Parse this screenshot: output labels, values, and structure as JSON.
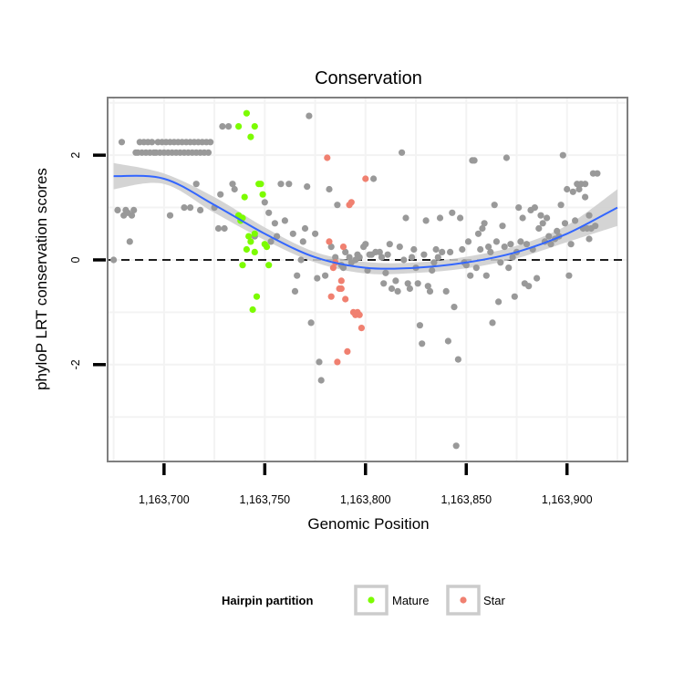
{
  "chart_data": {
    "type": "scatter",
    "title": "Conservation",
    "xlabel": "Genomic Position",
    "ylabel": "phyloP LRT conservation scores",
    "xlim": [
      1163672,
      1163930
    ],
    "ylim": [
      -3.85,
      3.1
    ],
    "x_ticks": [
      {
        "value": 1163700,
        "label": "1,163,700"
      },
      {
        "value": 1163750,
        "label": "1,163,750"
      },
      {
        "value": 1163800,
        "label": "1,163,800"
      },
      {
        "value": 1163850,
        "label": "1,163,850"
      },
      {
        "value": 1163900,
        "label": "1,163,900"
      }
    ],
    "y_ticks": [
      {
        "value": -2,
        "label": "-2"
      },
      {
        "value": 0,
        "label": "0"
      },
      {
        "value": 2,
        "label": "2"
      }
    ],
    "hline": 0,
    "grid": true,
    "colors": {
      "Other": "#999999",
      "Mature": "#7cfc00",
      "Star": "#f08070",
      "smooth": "#3366ff",
      "band": "#cccccc",
      "panel_bg": "#ffffff",
      "grid": "#f3f3f3",
      "border": "#7f7f7f"
    },
    "legend": {
      "title": "Hairpin partition",
      "position": "bottom",
      "entries": [
        {
          "name": "Mature",
          "color": "#7cfc00"
        },
        {
          "name": "Star",
          "color": "#f08070"
        }
      ]
    },
    "series": [
      {
        "name": "Other",
        "color": "#999999",
        "in_legend": false,
        "points": [
          [
            1163675,
            0.0
          ],
          [
            1163677,
            0.95
          ],
          [
            1163679,
            2.25
          ],
          [
            1163680,
            0.85
          ],
          [
            1163681,
            0.95
          ],
          [
            1163682,
            0.9
          ],
          [
            1163683,
            0.35
          ],
          [
            1163684,
            0.85
          ],
          [
            1163685,
            0.95
          ],
          [
            1163686,
            2.05
          ],
          [
            1163687,
            2.05
          ],
          [
            1163688,
            2.25
          ],
          [
            1163689,
            2.05
          ],
          [
            1163690,
            2.25
          ],
          [
            1163691,
            2.05
          ],
          [
            1163692,
            2.25
          ],
          [
            1163693,
            2.05
          ],
          [
            1163694,
            2.25
          ],
          [
            1163695,
            2.05
          ],
          [
            1163696,
            2.05
          ],
          [
            1163697,
            2.25
          ],
          [
            1163698,
            2.05
          ],
          [
            1163699,
            2.25
          ],
          [
            1163700,
            2.05
          ],
          [
            1163701,
            2.25
          ],
          [
            1163702,
            2.05
          ],
          [
            1163703,
            2.25
          ],
          [
            1163704,
            2.05
          ],
          [
            1163705,
            2.25
          ],
          [
            1163706,
            2.05
          ],
          [
            1163707,
            2.25
          ],
          [
            1163708,
            2.05
          ],
          [
            1163709,
            2.25
          ],
          [
            1163710,
            2.05
          ],
          [
            1163711,
            2.25
          ],
          [
            1163712,
            2.05
          ],
          [
            1163713,
            2.25
          ],
          [
            1163714,
            2.05
          ],
          [
            1163715,
            2.25
          ],
          [
            1163716,
            2.05
          ],
          [
            1163717,
            2.25
          ],
          [
            1163718,
            2.05
          ],
          [
            1163719,
            2.25
          ],
          [
            1163720,
            2.05
          ],
          [
            1163721,
            2.25
          ],
          [
            1163722,
            2.05
          ],
          [
            1163723,
            2.25
          ],
          [
            1163703,
            0.85
          ],
          [
            1163710,
            1.0
          ],
          [
            1163713,
            1.0
          ],
          [
            1163716,
            1.45
          ],
          [
            1163718,
            0.95
          ],
          [
            1163725,
            1.0
          ],
          [
            1163727,
            0.6
          ],
          [
            1163728,
            1.25
          ],
          [
            1163729,
            2.55
          ],
          [
            1163730,
            0.6
          ],
          [
            1163732,
            2.55
          ],
          [
            1163734,
            1.45
          ],
          [
            1163735,
            1.35
          ],
          [
            1163745,
            0.45
          ],
          [
            1163750,
            1.1
          ],
          [
            1163752,
            0.9
          ],
          [
            1163753,
            0.35
          ],
          [
            1163755,
            0.7
          ],
          [
            1163756,
            0.45
          ],
          [
            1163758,
            1.45
          ],
          [
            1163760,
            0.75
          ],
          [
            1163762,
            1.45
          ],
          [
            1163764,
            0.5
          ],
          [
            1163765,
            -0.6
          ],
          [
            1163766,
            -0.3
          ],
          [
            1163768,
            0.0
          ],
          [
            1163769,
            0.35
          ],
          [
            1163770,
            0.6
          ],
          [
            1163771,
            1.4
          ],
          [
            1163772,
            2.75
          ],
          [
            1163773,
            -1.2
          ],
          [
            1163775,
            0.5
          ],
          [
            1163776,
            -0.35
          ],
          [
            1163777,
            -1.95
          ],
          [
            1163778,
            -2.3
          ],
          [
            1163780,
            -0.3
          ],
          [
            1163782,
            1.35
          ],
          [
            1163783,
            0.25
          ],
          [
            1163785,
            0.05
          ],
          [
            1163786,
            1.05
          ],
          [
            1163788,
            -0.1
          ],
          [
            1163789,
            -0.15
          ],
          [
            1163790,
            0.15
          ],
          [
            1163792,
            0.05
          ],
          [
            1163793,
            -0.05
          ],
          [
            1163795,
            0.0
          ],
          [
            1163796,
            0.1
          ],
          [
            1163797,
            0.05
          ],
          [
            1163799,
            0.25
          ],
          [
            1163800,
            0.3
          ],
          [
            1163801,
            -0.2
          ],
          [
            1163802,
            0.1
          ],
          [
            1163803,
            0.1
          ],
          [
            1163804,
            1.55
          ],
          [
            1163805,
            0.15
          ],
          [
            1163807,
            0.15
          ],
          [
            1163808,
            0.05
          ],
          [
            1163809,
            -0.45
          ],
          [
            1163810,
            -0.25
          ],
          [
            1163811,
            0.1
          ],
          [
            1163812,
            0.3
          ],
          [
            1163813,
            -0.55
          ],
          [
            1163815,
            -0.4
          ],
          [
            1163816,
            -0.6
          ],
          [
            1163817,
            0.25
          ],
          [
            1163818,
            2.05
          ],
          [
            1163819,
            0.0
          ],
          [
            1163820,
            0.8
          ],
          [
            1163821,
            -0.45
          ],
          [
            1163822,
            -0.55
          ],
          [
            1163823,
            0.05
          ],
          [
            1163824,
            0.2
          ],
          [
            1163825,
            -0.15
          ],
          [
            1163826,
            -0.45
          ],
          [
            1163827,
            -1.25
          ],
          [
            1163828,
            -1.6
          ],
          [
            1163829,
            0.1
          ],
          [
            1163830,
            0.75
          ],
          [
            1163831,
            -0.5
          ],
          [
            1163832,
            -0.6
          ],
          [
            1163833,
            -0.2
          ],
          [
            1163834,
            -0.05
          ],
          [
            1163835,
            0.2
          ],
          [
            1163836,
            0.05
          ],
          [
            1163837,
            0.8
          ],
          [
            1163838,
            0.15
          ],
          [
            1163840,
            -0.6
          ],
          [
            1163841,
            -1.55
          ],
          [
            1163842,
            0.15
          ],
          [
            1163843,
            0.9
          ],
          [
            1163844,
            -0.9
          ],
          [
            1163845,
            -3.55
          ],
          [
            1163846,
            -1.9
          ],
          [
            1163847,
            0.8
          ],
          [
            1163848,
            0.2
          ],
          [
            1163849,
            -0.05
          ],
          [
            1163850,
            -0.1
          ],
          [
            1163851,
            0.35
          ],
          [
            1163852,
            -0.3
          ],
          [
            1163853,
            1.9
          ],
          [
            1163854,
            1.9
          ],
          [
            1163855,
            -0.15
          ],
          [
            1163856,
            0.5
          ],
          [
            1163857,
            0.2
          ],
          [
            1163858,
            0.6
          ],
          [
            1163859,
            0.7
          ],
          [
            1163860,
            -0.3
          ],
          [
            1163861,
            0.25
          ],
          [
            1163862,
            0.15
          ],
          [
            1163863,
            -1.2
          ],
          [
            1163864,
            1.05
          ],
          [
            1163865,
            0.35
          ],
          [
            1163866,
            -0.8
          ],
          [
            1163867,
            -0.05
          ],
          [
            1163868,
            0.65
          ],
          [
            1163869,
            0.25
          ],
          [
            1163870,
            1.95
          ],
          [
            1163871,
            -0.15
          ],
          [
            1163872,
            0.3
          ],
          [
            1163873,
            0.05
          ],
          [
            1163874,
            -0.7
          ],
          [
            1163875,
            0.15
          ],
          [
            1163876,
            1.0
          ],
          [
            1163877,
            0.35
          ],
          [
            1163878,
            0.8
          ],
          [
            1163879,
            -0.45
          ],
          [
            1163880,
            0.3
          ],
          [
            1163881,
            -0.5
          ],
          [
            1163882,
            0.95
          ],
          [
            1163883,
            0.2
          ],
          [
            1163884,
            1.0
          ],
          [
            1163885,
            -0.35
          ],
          [
            1163886,
            0.6
          ],
          [
            1163887,
            0.85
          ],
          [
            1163888,
            0.7
          ],
          [
            1163889,
            0.35
          ],
          [
            1163890,
            0.8
          ],
          [
            1163891,
            0.45
          ],
          [
            1163892,
            0.3
          ],
          [
            1163894,
            0.4
          ],
          [
            1163895,
            0.55
          ],
          [
            1163896,
            0.45
          ],
          [
            1163897,
            1.05
          ],
          [
            1163898,
            2.0
          ],
          [
            1163899,
            0.7
          ],
          [
            1163900,
            1.35
          ],
          [
            1163901,
            -0.3
          ],
          [
            1163902,
            0.3
          ],
          [
            1163903,
            1.3
          ],
          [
            1163904,
            0.75
          ],
          [
            1163905,
            1.45
          ],
          [
            1163906,
            1.35
          ],
          [
            1163907,
            1.45
          ],
          [
            1163908,
            0.6
          ],
          [
            1163909,
            1.45
          ],
          [
            1163910,
            0.6
          ],
          [
            1163911,
            0.4
          ],
          [
            1163912,
            0.6
          ],
          [
            1163913,
            1.65
          ],
          [
            1163914,
            0.65
          ],
          [
            1163915,
            1.65
          ],
          [
            1163911,
            0.85
          ],
          [
            1163909,
            1.2
          ]
        ]
      },
      {
        "name": "Mature",
        "color": "#7cfc00",
        "in_legend": true,
        "points": [
          [
            1163737,
            2.55
          ],
          [
            1163741,
            2.8
          ],
          [
            1163743,
            2.35
          ],
          [
            1163745,
            2.55
          ],
          [
            1163737,
            0.85
          ],
          [
            1163738,
            0.75
          ],
          [
            1163739,
            0.8
          ],
          [
            1163740,
            1.2
          ],
          [
            1163741,
            0.2
          ],
          [
            1163742,
            0.45
          ],
          [
            1163743,
            0.35
          ],
          [
            1163744,
            -0.95
          ],
          [
            1163745,
            0.15
          ],
          [
            1163746,
            -0.7
          ],
          [
            1163747,
            1.45
          ],
          [
            1163748,
            1.45
          ],
          [
            1163749,
            1.25
          ],
          [
            1163750,
            0.3
          ],
          [
            1163751,
            0.25
          ],
          [
            1163752,
            -0.1
          ],
          [
            1163739,
            -0.1
          ],
          [
            1163745,
            0.5
          ]
        ]
      },
      {
        "name": "Star",
        "color": "#f08070",
        "in_legend": true,
        "points": [
          [
            1163781,
            1.95
          ],
          [
            1163782,
            0.35
          ],
          [
            1163783,
            -0.7
          ],
          [
            1163784,
            -0.15
          ],
          [
            1163785,
            -0.05
          ],
          [
            1163786,
            -1.95
          ],
          [
            1163787,
            -0.55
          ],
          [
            1163788,
            -0.4
          ],
          [
            1163789,
            0.25
          ],
          [
            1163790,
            -0.75
          ],
          [
            1163791,
            -1.75
          ],
          [
            1163792,
            1.05
          ],
          [
            1163793,
            1.1
          ],
          [
            1163794,
            -1.0
          ],
          [
            1163795,
            -1.05
          ],
          [
            1163796,
            -1.0
          ],
          [
            1163797,
            -1.05
          ],
          [
            1163798,
            -1.3
          ],
          [
            1163800,
            1.55
          ],
          [
            1163788,
            -0.55
          ]
        ]
      }
    ],
    "smooth": {
      "x": [
        1163675,
        1163700,
        1163725,
        1163750,
        1163775,
        1163800,
        1163825,
        1163850,
        1163875,
        1163900,
        1163925
      ],
      "y": [
        1.6,
        1.55,
        1.05,
        0.5,
        0.05,
        -0.15,
        -0.15,
        -0.05,
        0.15,
        0.5,
        1.0
      ],
      "lower": [
        1.35,
        1.45,
        0.9,
        0.38,
        -0.05,
        -0.26,
        -0.25,
        -0.16,
        0.03,
        0.34,
        0.65
      ],
      "upper": [
        1.85,
        1.65,
        1.2,
        0.62,
        0.15,
        -0.04,
        -0.05,
        0.06,
        0.27,
        0.66,
        1.35
      ]
    }
  }
}
